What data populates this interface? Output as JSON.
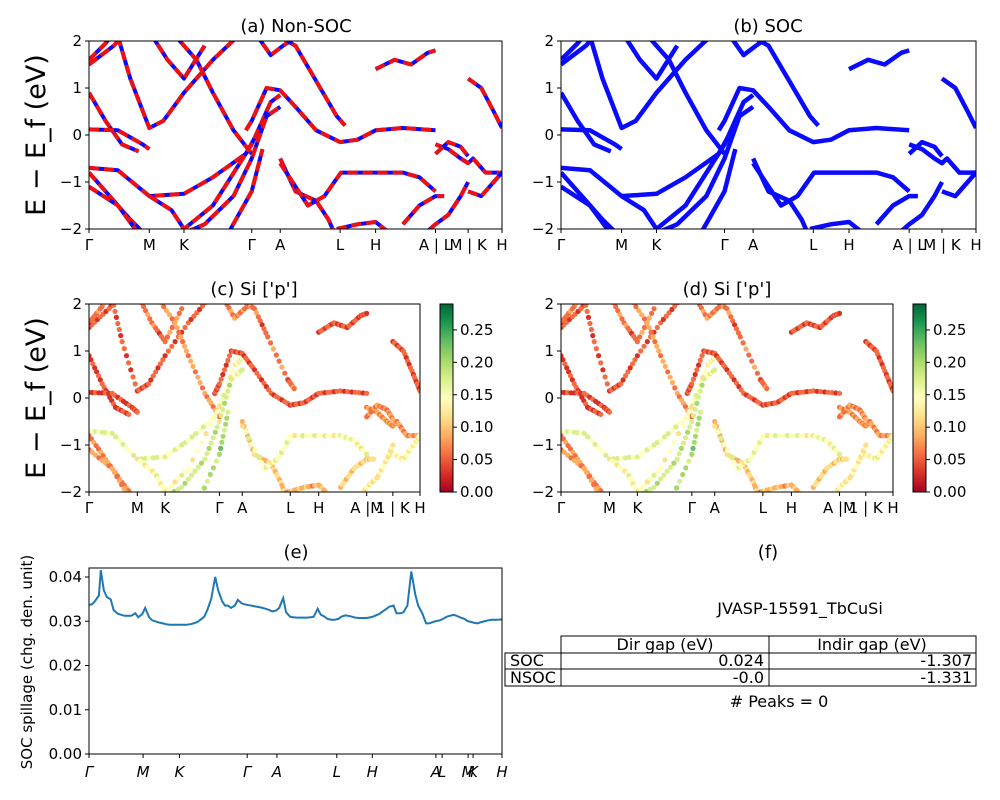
{
  "panels": {
    "a": {
      "title": "(a) Non-SOC"
    },
    "b": {
      "title": "(b) SOC"
    },
    "c": {
      "title": "(c)  Si ['p']"
    },
    "d": {
      "title": "(d) Si ['p']"
    },
    "e": {
      "title": "(e)"
    },
    "f": {
      "title": "(f)"
    }
  },
  "band_ylabel": "E − E_f (eV)",
  "band_yticks": [
    "2",
    "1",
    "0",
    "−1",
    "−2"
  ],
  "kpath_labels_band": [
    "Γ",
    "M",
    "K",
    "Γ",
    "A",
    "L",
    "H",
    "A | L",
    "M | K",
    "H"
  ],
  "kpath_labels_proj": [
    "Γ",
    "M",
    "K",
    "Γ",
    "A",
    "L",
    "H",
    "A |M",
    "1 | K",
    "H"
  ],
  "colorbar_ticks": [
    "0.25",
    "0.20",
    "0.15",
    "0.10",
    "0.05",
    "0.00"
  ],
  "colors": {
    "nonsoc": "#ee1111",
    "soc": "#0a0aff",
    "spillage": "#1f77b4"
  },
  "chart_data": [
    {
      "type": "line",
      "panel": "a",
      "title": "(a) Non-SOC",
      "ylabel": "E − E_f (eV)",
      "ylim": [
        -2,
        2
      ],
      "xticks": [
        "Γ",
        "M",
        "K",
        "Γ",
        "A",
        "L",
        "H",
        "A | L",
        "M | K",
        "H"
      ],
      "series": []
    },
    {
      "type": "line",
      "panel": "b",
      "title": "(b) SOC",
      "ylim": [
        -2,
        2
      ],
      "xticks": [
        "Γ",
        "M",
        "K",
        "Γ",
        "A",
        "L",
        "H",
        "A | L",
        "M | K",
        "H"
      ]
    },
    {
      "type": "scatter",
      "panel": "c",
      "title": "(c)  Si ['p']",
      "ylim": [
        -2,
        2
      ],
      "colorbar_range": [
        0.0,
        0.29
      ]
    },
    {
      "type": "scatter",
      "panel": "d",
      "title": "(d) Si ['p']",
      "ylim": [
        -2,
        2
      ],
      "colorbar_range": [
        0.0,
        0.29
      ]
    },
    {
      "type": "line",
      "panel": "e",
      "title": "(e)",
      "ylabel": "SOC spillage (chg. den. unit)",
      "ylim": [
        0.0,
        0.042
      ],
      "yticks": [
        "0.04",
        "0.03",
        "0.02",
        "0.01",
        "0.00"
      ],
      "xticks": [
        "Γ",
        "M",
        "K",
        "Γ",
        "A",
        "L",
        "H",
        "A",
        "L",
        "M",
        "K",
        "H"
      ],
      "x": [
        0,
        3,
        6,
        10,
        12,
        15,
        18,
        22,
        25,
        29,
        33,
        36,
        40,
        43,
        47,
        50,
        54,
        57,
        61,
        64,
        68,
        71,
        75,
        78,
        82,
        85,
        89,
        92,
        96,
        99,
        103,
        106,
        110,
        113,
        117,
        120,
        124,
        128,
        131,
        135,
        138,
        141,
        144,
        148,
        151,
        155,
        158,
        162,
        165,
        169,
        172,
        176,
        179,
        183,
        186,
        190,
        193,
        197,
        200,
        204,
        207,
        211,
        214,
        218,
        221,
        225,
        228,
        232,
        235,
        239,
        242,
        246,
        249,
        253,
        256,
        260,
        263,
        267,
        270,
        274,
        277,
        281,
        284,
        288,
        291,
        295,
        298,
        302,
        305,
        309,
        312,
        316,
        319,
        323,
        327,
        331,
        334,
        338,
        342,
        345,
        349,
        352,
        356,
        359,
        363,
        366,
        370,
        373,
        377,
        381,
        384,
        388,
        391,
        394,
        398,
        402,
        405,
        409,
        412,
        415,
        419
      ],
      "values": [
        0.0337,
        0.0338,
        0.0345,
        0.0358,
        0.0415,
        0.037,
        0.0355,
        0.0349,
        0.0325,
        0.0317,
        0.0314,
        0.0312,
        0.0312,
        0.0312,
        0.0318,
        0.0309,
        0.0316,
        0.033,
        0.0309,
        0.0302,
        0.0299,
        0.0297,
        0.0295,
        0.0293,
        0.0292,
        0.0292,
        0.0292,
        0.0292,
        0.0292,
        0.0292,
        0.0293,
        0.0295,
        0.0298,
        0.0303,
        0.031,
        0.0325,
        0.035,
        0.04,
        0.037,
        0.0345,
        0.0335,
        0.0335,
        0.033,
        0.0335,
        0.0348,
        0.034,
        0.0338,
        0.0336,
        0.0335,
        0.0333,
        0.0332,
        0.033,
        0.0328,
        0.0325,
        0.0322,
        0.0324,
        0.033,
        0.0352,
        0.032,
        0.031,
        0.0309,
        0.0308,
        0.0308,
        0.0308,
        0.0308,
        0.0309,
        0.031,
        0.0328,
        0.0315,
        0.031,
        0.0305,
        0.0303,
        0.0303,
        0.0305,
        0.031,
        0.0313,
        0.0312,
        0.031,
        0.0308,
        0.0307,
        0.0307,
        0.0307,
        0.0308,
        0.031,
        0.0313,
        0.0317,
        0.0322,
        0.0328,
        0.0333,
        0.0335,
        0.0318,
        0.0318,
        0.032,
        0.0335,
        0.0412,
        0.036,
        0.0335,
        0.0318,
        0.0295,
        0.0295,
        0.0298,
        0.03,
        0.0302,
        0.0305,
        0.031,
        0.0312,
        0.0314,
        0.0312,
        0.0308,
        0.0305,
        0.03,
        0.0298,
        0.0296,
        0.0295,
        0.0298,
        0.03,
        0.0302,
        0.0303,
        0.0303,
        0.0303,
        0.0304
      ]
    },
    {
      "type": "table",
      "panel": "f",
      "title": "(f)",
      "material": "JVASP-15591_TbCuSi",
      "columns": [
        "Dir gap (eV)",
        "Indir gap (eV)"
      ],
      "rows": [
        {
          "label": "SOC",
          "values": [
            "0.024",
            "-1.307"
          ]
        },
        {
          "label": "NSOC",
          "values": [
            "-0.0",
            "-1.331"
          ]
        }
      ],
      "note": "# Peaks = 0"
    }
  ]
}
